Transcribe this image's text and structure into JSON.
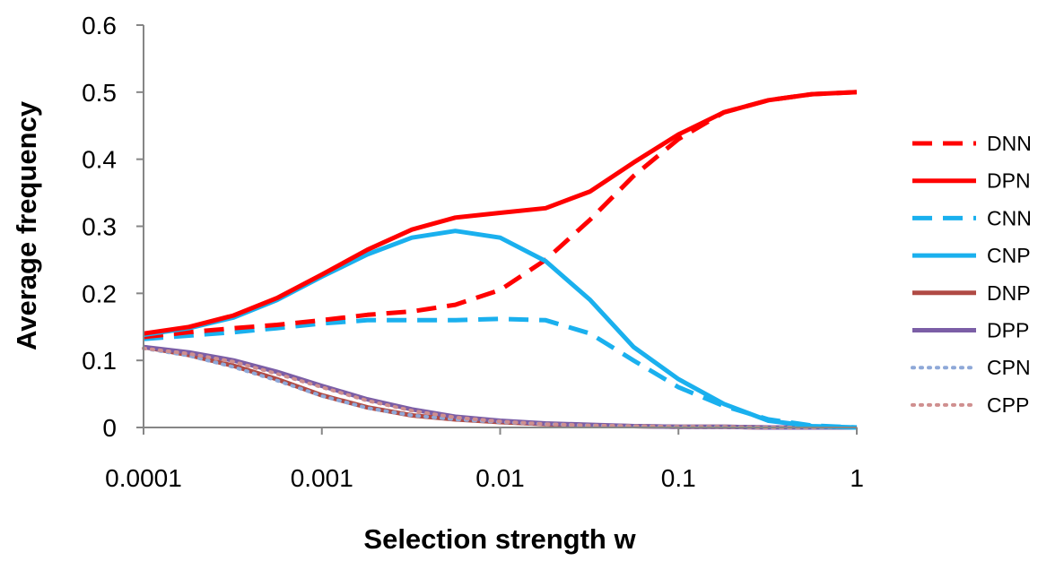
{
  "chart_data": {
    "type": "line",
    "xlabel": "Selection strength w",
    "ylabel": "Average frequency",
    "x_scale": "log",
    "xlim": [
      0.0001,
      1
    ],
    "ylim": [
      0,
      0.6
    ],
    "x_ticks": [
      0.0001,
      0.001,
      0.01,
      0.1,
      1
    ],
    "x_tick_labels": [
      "0.0001",
      "0.001",
      "0.01",
      "0.1",
      "1"
    ],
    "y_ticks": [
      0,
      0.1,
      0.2,
      0.3,
      0.4,
      0.5,
      0.6
    ],
    "y_tick_labels": [
      "0",
      "0.1",
      "0.2",
      "0.3",
      "0.4",
      "0.5",
      "0.6"
    ],
    "grid": false,
    "legend_position": "right",
    "x": [
      0.0001,
      0.00018,
      0.00032,
      0.00056,
      0.001,
      0.0018,
      0.0032,
      0.0056,
      0.01,
      0.018,
      0.032,
      0.056,
      0.1,
      0.18,
      0.32,
      0.56,
      1
    ],
    "series": [
      {
        "name": "DNN",
        "color": "#ff0000",
        "dash": "dashed",
        "values": [
          0.135,
          0.142,
          0.148,
          0.153,
          0.16,
          0.168,
          0.173,
          0.183,
          0.205,
          0.25,
          0.31,
          0.375,
          0.43,
          0.47,
          0.488,
          0.497,
          0.5
        ]
      },
      {
        "name": "DPN",
        "color": "#ff0000",
        "dash": "solid",
        "values": [
          0.14,
          0.15,
          0.167,
          0.193,
          0.228,
          0.265,
          0.295,
          0.313,
          0.32,
          0.327,
          0.352,
          0.395,
          0.437,
          0.47,
          0.488,
          0.497,
          0.5
        ]
      },
      {
        "name": "CNN",
        "color": "#1ab0ee",
        "dash": "dashed",
        "values": [
          0.132,
          0.137,
          0.142,
          0.148,
          0.155,
          0.16,
          0.16,
          0.16,
          0.162,
          0.16,
          0.14,
          0.1,
          0.06,
          0.032,
          0.012,
          0.003,
          0.0
        ]
      },
      {
        "name": "CNP",
        "color": "#1ab0ee",
        "dash": "solid",
        "values": [
          0.138,
          0.148,
          0.164,
          0.19,
          0.225,
          0.258,
          0.283,
          0.293,
          0.283,
          0.248,
          0.19,
          0.12,
          0.072,
          0.035,
          0.01,
          0.002,
          0.0
        ]
      },
      {
        "name": "DNP",
        "color": "#b04a44",
        "dash": "solid",
        "values": [
          0.12,
          0.108,
          0.092,
          0.072,
          0.048,
          0.03,
          0.018,
          0.012,
          0.008,
          0.005,
          0.003,
          0.002,
          0.001,
          0.001,
          0.0,
          0.0,
          0.0
        ]
      },
      {
        "name": "DPP",
        "color": "#7b5ea6",
        "dash": "solid",
        "values": [
          0.12,
          0.112,
          0.1,
          0.083,
          0.062,
          0.042,
          0.027,
          0.016,
          0.01,
          0.006,
          0.004,
          0.002,
          0.001,
          0.001,
          0.0,
          0.0,
          0.0
        ]
      },
      {
        "name": "CPN",
        "color": "#8ea8d8",
        "dash": "dotted",
        "values": [
          0.118,
          0.107,
          0.09,
          0.07,
          0.047,
          0.029,
          0.018,
          0.012,
          0.008,
          0.005,
          0.003,
          0.002,
          0.001,
          0.001,
          0.0,
          0.0,
          0.0
        ]
      },
      {
        "name": "CPP",
        "color": "#cf8f8f",
        "dash": "dotted",
        "values": [
          0.118,
          0.11,
          0.098,
          0.08,
          0.06,
          0.04,
          0.025,
          0.015,
          0.009,
          0.005,
          0.003,
          0.002,
          0.001,
          0.001,
          0.0,
          0.0,
          0.0
        ]
      }
    ]
  }
}
